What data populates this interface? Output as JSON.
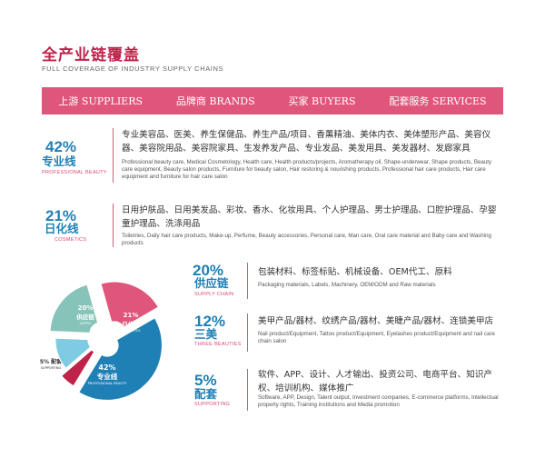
{
  "header": {
    "title": "全产业链覆盖",
    "subtitle": "FULL COVERAGE OF INDUSTRY SUPPLY CHAINS"
  },
  "nav": {
    "items": [
      {
        "label": "上游 SUPPLIERS"
      },
      {
        "label": "品牌商 BRANDS"
      },
      {
        "label": "买家 BUYERS"
      },
      {
        "label": "配套服务 SERVICES"
      }
    ]
  },
  "sections": {
    "professional": {
      "percent": "42%",
      "name_cn": "专业线",
      "name_en": "PROFESSIONAL BEAUTY",
      "desc_cn": "专业美容品、医美、养生保健品、养生产品/项目、香薰精油、美体内衣、美体塑形产品、美容仪器、美容院用品、美容院家具、生发养发产品、专业发品、美发用具、美发器材、发廊家具",
      "desc_en": "Professional beauty care, Medical Cosmetology, Health care, Health products/projects, Aromatherapy oil, Shape-underwear, Shape products, Beauty care equipment, Beauty salon products, Furniture for beauty salon, Hair restoring & nourishing products, Professional hair care products, Hair care equipment and furniture for hair care salon"
    },
    "cosmetics": {
      "percent": "21%",
      "name_cn": "日化线",
      "name_en": "COSMETICS",
      "desc_cn": "日用护肤品、日用美发品、彩妆、香水、化妆用具、个人护理品、男士护理品、口腔护理品、孕婴童护理品、洗涤用品",
      "desc_en": "Toiletries, Daily hair care products, Make-up, Perfume, Beauty accessories, Personal care, Man care, Oral care material and Baby care and Washing products"
    },
    "supply": {
      "percent": "20%",
      "name_cn": "供应链",
      "name_en": "SUPPLY CHAIN",
      "desc_cn": "包装材料、标签标贴、机械设备、OEM代工、原料",
      "desc_en": "Packaging materials, Labels, Machinery, OEM/ODM and Raw materials"
    },
    "three_beauties": {
      "percent": "12%",
      "name_cn": "三美",
      "name_en": "THREE BEAUTIES",
      "desc_cn": "美甲产品/器材、纹绣产品/器材、美睫产品/器材、连锁美甲店",
      "desc_en": "Nail product/Equipment, Tattoo product/Equipment, Eyelashes product/Equipment and nail care chain salon"
    },
    "supporting": {
      "percent": "5%",
      "name_cn": "配套",
      "name_en": "SUPPORTING",
      "desc_cn": "软件、APP、设计、人才输出、投资公司、电商平台、知识产权、培训机构、媒体推广",
      "desc_en": "Software, APP, Design, Talent output, Investment companies, E-commerce platforms, Intellectual property rights, Training institutions and Media promotion"
    }
  },
  "chart_data": {
    "type": "pie",
    "title": "",
    "slices": [
      {
        "label_pct": "42%",
        "label_cn": "专业线",
        "label_en": "PROFESSIONAL BEAUTY",
        "value": 42,
        "color": "#1f80b6"
      },
      {
        "label_pct": "5%",
        "label_cn": "配套",
        "label_en": "SUPPORTING",
        "value": 5,
        "color": "#c0234a"
      },
      {
        "label_pct": "12%",
        "label_cn": "三美",
        "label_en": "THREE BEAUTIES",
        "value": 12,
        "color": "#7fcbe3"
      },
      {
        "label_pct": "20%",
        "label_cn": "供应链",
        "label_en": "SUPPLY",
        "value": 20,
        "color": "#86c3b9"
      },
      {
        "label_pct": "21%",
        "label_cn": "日化线",
        "label_en": "COSMETICS",
        "value": 21,
        "color": "#e0557a"
      }
    ]
  },
  "colors": {
    "brand_pink": "#e0557a",
    "brand_red": "#c0234a",
    "brand_blue": "#1f80b6"
  }
}
